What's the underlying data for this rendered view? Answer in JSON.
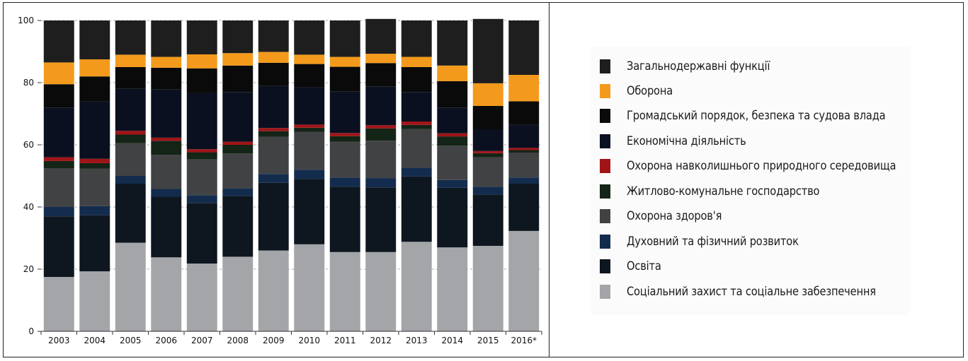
{
  "chart_data": {
    "type": "bar",
    "stacked": true,
    "categories": [
      "2003",
      "2004",
      "2005",
      "2006",
      "2007",
      "2008",
      "2009",
      "2010",
      "2011",
      "2012",
      "2013",
      "2014",
      "2015",
      "2016*"
    ],
    "yticks": [
      "0",
      "20",
      "40",
      "60",
      "80",
      "100"
    ],
    "ylim": [
      0,
      100
    ],
    "grid": true,
    "legend_position": "right",
    "series": [
      {
        "name": "Соціальний захист та соціальне забезпечення",
        "color": "#a3a5a8",
        "values": [
          17.5,
          19.3,
          28.5,
          23.8,
          21.8,
          24,
          26,
          28,
          25.5,
          25.5,
          28.8,
          27,
          27.5,
          32.3
        ]
      },
      {
        "name": "Освіта",
        "color": "#0e1620",
        "values": [
          19.5,
          18,
          19,
          19.5,
          19.5,
          19.5,
          21.8,
          21,
          21,
          20.8,
          21,
          19.2,
          16.5,
          15.2
        ]
      },
      {
        "name": "Духовний та фізичний розвиток",
        "color": "#132c4d",
        "values": [
          3,
          3,
          2.5,
          2.5,
          2.5,
          2.5,
          2.8,
          3,
          3,
          3,
          2.8,
          2.5,
          2.5,
          2
        ]
      },
      {
        "name": "Охорона здоров'я",
        "color": "#414244",
        "values": [
          12.5,
          12,
          10.5,
          11,
          11.5,
          11.2,
          12,
          12.2,
          11.5,
          12,
          12.5,
          11,
          9.5,
          8
        ]
      },
      {
        "name": "Житлово-комунальне господарство",
        "color": "#142416",
        "values": [
          2.3,
          1.8,
          2.8,
          4.5,
          2.3,
          2.8,
          1.8,
          1.3,
          1.8,
          4,
          1.3,
          3,
          1.3,
          0.8
        ]
      },
      {
        "name": "Охорона навколишнього природного середовища",
        "color": "#a01418",
        "values": [
          1.2,
          1.4,
          1.2,
          1,
          1,
          1,
          1,
          1,
          1,
          1,
          1.1,
          1,
          0.7,
          0.7
        ]
      },
      {
        "name": "Економічна діяльність",
        "color": "#0a1020",
        "values": [
          16,
          18.5,
          13.5,
          15.5,
          18,
          16,
          13.5,
          12,
          13.3,
          12.5,
          9.5,
          8.3,
          7,
          7.5
        ]
      },
      {
        "name": "Громадський порядок, безпека та судова влада",
        "color": "#0a0a0a",
        "values": [
          7.5,
          8,
          7,
          7,
          8,
          8.5,
          7.5,
          7.5,
          8,
          7.5,
          8,
          8.5,
          7.5,
          7.5
        ]
      },
      {
        "name": "Оборона",
        "color": "#f39a1c",
        "values": [
          7,
          5.5,
          4,
          3.5,
          4.5,
          4,
          3.5,
          3,
          3.2,
          3,
          3.3,
          5,
          7.3,
          8.5
        ]
      },
      {
        "name": "Загальнодержавні функції",
        "color": "#1e1e1f",
        "values": [
          13.5,
          12.5,
          11,
          11.7,
          10.9,
          10.5,
          10.1,
          11,
          11.7,
          11.2,
          11.7,
          14.5,
          20.7,
          17.5
        ]
      }
    ]
  },
  "legend": {
    "items": [
      {
        "label": "Загальнодержавні функції",
        "color": "#1e1e1f"
      },
      {
        "label": "Оборона",
        "color": "#f39a1c"
      },
      {
        "label": "Громадський порядок, безпека та судова влада",
        "color": "#0a0a0a"
      },
      {
        "label": "Економічна діяльність",
        "color": "#0a1020"
      },
      {
        "label": "Охорона навколишнього природного середовища",
        "color": "#a01418"
      },
      {
        "label": "Житлово-комунальне господарство",
        "color": "#142416"
      },
      {
        "label": "Охорона здоров'я",
        "color": "#414244"
      },
      {
        "label": "Духовний та фізичний розвиток",
        "color": "#132c4d"
      },
      {
        "label": "Освіта",
        "color": "#0e1620"
      },
      {
        "label": "Соціальний захист та соціальне забезпечення",
        "color": "#a3a5a8"
      }
    ]
  }
}
